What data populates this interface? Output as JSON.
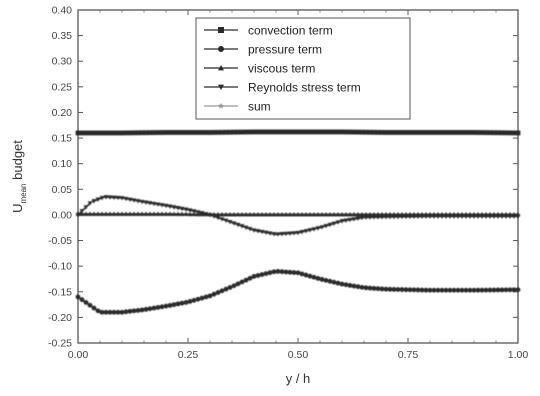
{
  "chart_data": {
    "type": "line",
    "xlabel": "y / h",
    "ylabel_main": "U",
    "ylabel_sub": "mean",
    "ylabel_rest": " budget",
    "xlim": [
      0,
      1
    ],
    "ylim": [
      -0.25,
      0.4
    ],
    "xticks": [
      0,
      0.25,
      0.5,
      0.75,
      1
    ],
    "xtick_labels": [
      "0.00",
      "0.25",
      "0.50",
      "0.75",
      "1.00"
    ],
    "yticks": [
      -0.25,
      -0.2,
      -0.15,
      -0.1,
      -0.05,
      0,
      0.05,
      0.1,
      0.15,
      0.2,
      0.25,
      0.3,
      0.35,
      0.4
    ],
    "ytick_labels": [
      "-0.25",
      "-0.20",
      "-0.15",
      "-0.10",
      "-0.05",
      "0.00",
      "0.05",
      "0.10",
      "0.15",
      "0.20",
      "0.25",
      "0.30",
      "0.35",
      "0.40"
    ],
    "grid": false,
    "legend_position": "top-center",
    "series": [
      {
        "name": "convection term",
        "marker": "square",
        "color": "#2a2a2a",
        "x": [
          0,
          0.1,
          0.2,
          0.3,
          0.4,
          0.5,
          0.6,
          0.7,
          0.8,
          0.9,
          1.0
        ],
        "y": [
          0.16,
          0.16,
          0.161,
          0.161,
          0.162,
          0.162,
          0.162,
          0.161,
          0.161,
          0.161,
          0.16
        ]
      },
      {
        "name": "pressure term",
        "marker": "circle",
        "color": "#2a2a2a",
        "x": [
          0,
          0.05,
          0.1,
          0.15,
          0.2,
          0.25,
          0.3,
          0.35,
          0.4,
          0.45,
          0.5,
          0.55,
          0.6,
          0.65,
          0.7,
          0.8,
          0.9,
          1.0
        ],
        "y": [
          -0.16,
          -0.19,
          -0.19,
          -0.185,
          -0.178,
          -0.17,
          -0.158,
          -0.14,
          -0.12,
          -0.11,
          -0.113,
          -0.125,
          -0.135,
          -0.142,
          -0.145,
          -0.147,
          -0.147,
          -0.146
        ]
      },
      {
        "name": "viscous term",
        "marker": "triangle-up",
        "color": "#2a2a2a",
        "x": [
          0,
          0.1,
          0.2,
          0.3,
          0.4,
          0.5,
          0.6,
          0.7,
          0.8,
          0.9,
          1.0
        ],
        "y": [
          0.002,
          0.002,
          0.002,
          0.001,
          0.001,
          0.001,
          0.001,
          0.001,
          0.001,
          0.001,
          0.001
        ]
      },
      {
        "name": "Reynolds stress term",
        "marker": "triangle-down",
        "color": "#2a2a2a",
        "x": [
          0,
          0.03,
          0.06,
          0.1,
          0.15,
          0.2,
          0.25,
          0.3,
          0.35,
          0.4,
          0.45,
          0.5,
          0.55,
          0.6,
          0.65,
          0.7,
          0.8,
          0.9,
          1.0
        ],
        "y": [
          0.0,
          0.025,
          0.035,
          0.033,
          0.025,
          0.018,
          0.01,
          0.0,
          -0.015,
          -0.03,
          -0.038,
          -0.035,
          -0.025,
          -0.012,
          -0.005,
          -0.004,
          -0.003,
          -0.003,
          -0.003
        ]
      },
      {
        "name": "sum",
        "marker": "star",
        "color": "#9a9a9a",
        "x": [
          0,
          0.1,
          0.2,
          0.3,
          0.4,
          0.5,
          0.6,
          0.7,
          0.8,
          0.9,
          1.0
        ],
        "y": [
          0.001,
          0.001,
          0.001,
          0.001,
          0.001,
          0.001,
          0.001,
          0.001,
          0.001,
          0.001,
          0.001
        ]
      }
    ]
  }
}
